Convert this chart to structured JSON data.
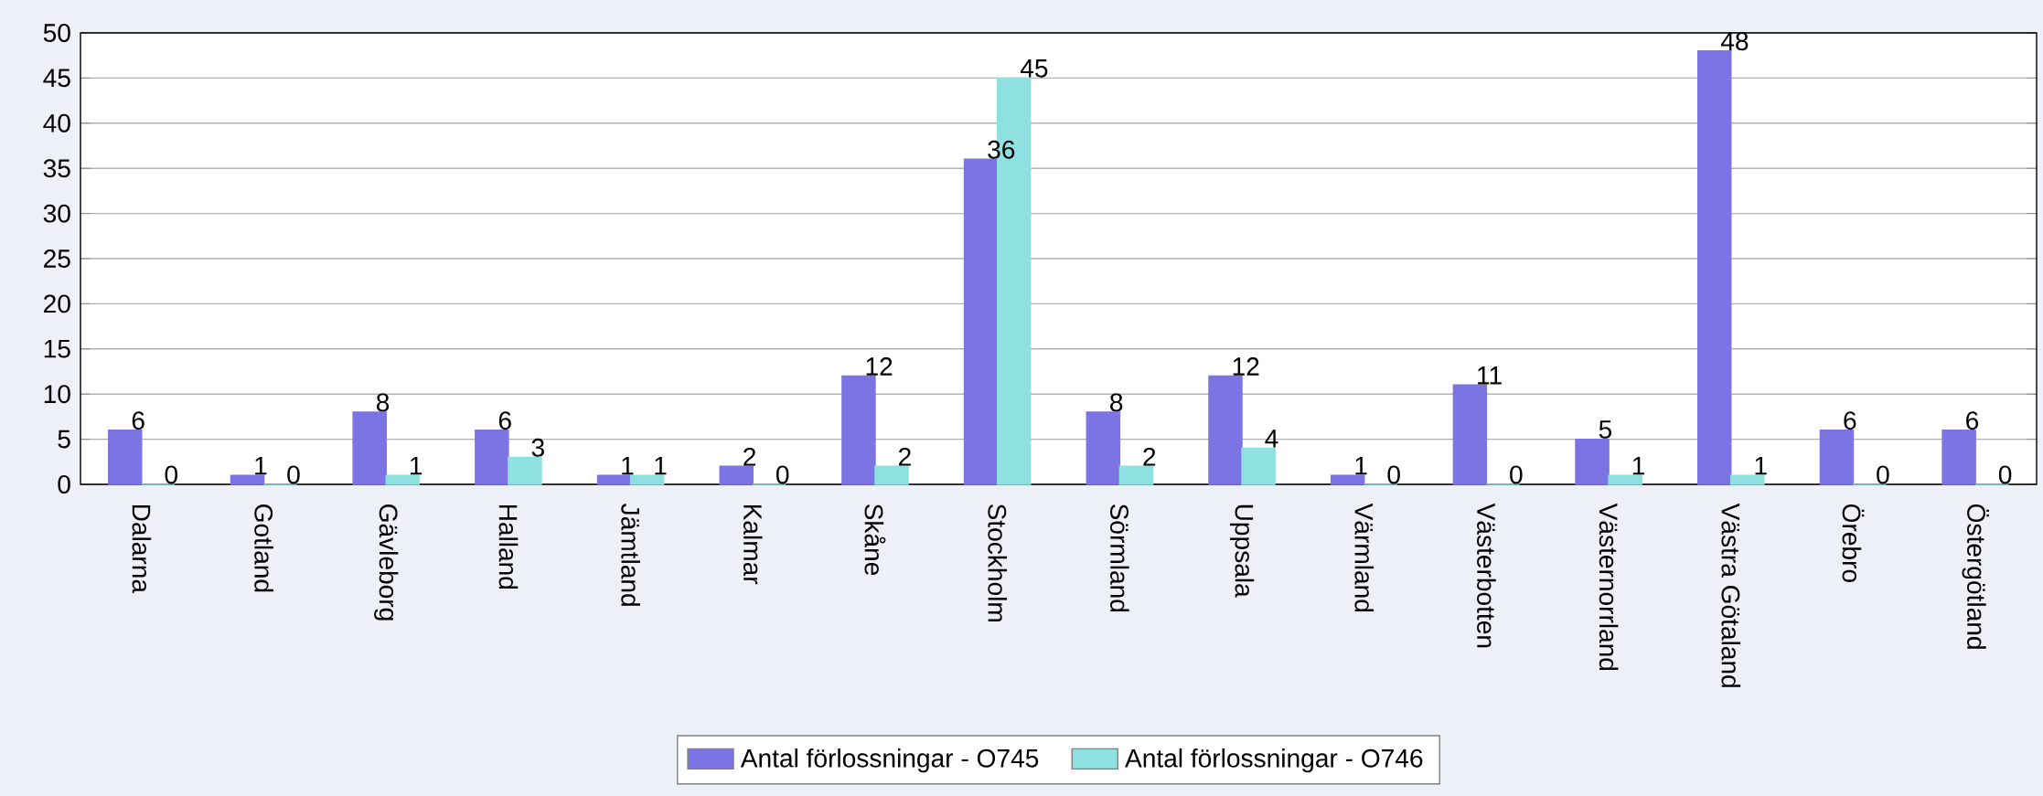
{
  "chart_data": {
    "type": "bar",
    "categories": [
      "Dalarna",
      "Gotland",
      "Gävleborg",
      "Halland",
      "Jämtland",
      "Kalmar",
      "Skåne",
      "Stockholm",
      "Sörmland",
      "Uppsala",
      "Värmland",
      "Västerbotten",
      "Västernorrland",
      "Västra Götaland",
      "Örebro",
      "Östergötland"
    ],
    "series": [
      {
        "name": "Antal förlossningar - O745",
        "color": "#7b74e2",
        "values": [
          6,
          1,
          8,
          6,
          1,
          2,
          12,
          36,
          8,
          12,
          1,
          11,
          5,
          48,
          6,
          6
        ]
      },
      {
        "name": "Antal förlossningar - O746",
        "color": "#8fe0e0",
        "values": [
          0,
          0,
          1,
          3,
          1,
          0,
          2,
          45,
          2,
          4,
          0,
          0,
          1,
          1,
          0,
          0
        ]
      }
    ],
    "ylim": [
      0,
      50
    ],
    "yticks": [
      0,
      5,
      10,
      15,
      20,
      25,
      30,
      35,
      40,
      45,
      50
    ],
    "grid": "y",
    "legend": "bottom",
    "data_labels": true
  }
}
